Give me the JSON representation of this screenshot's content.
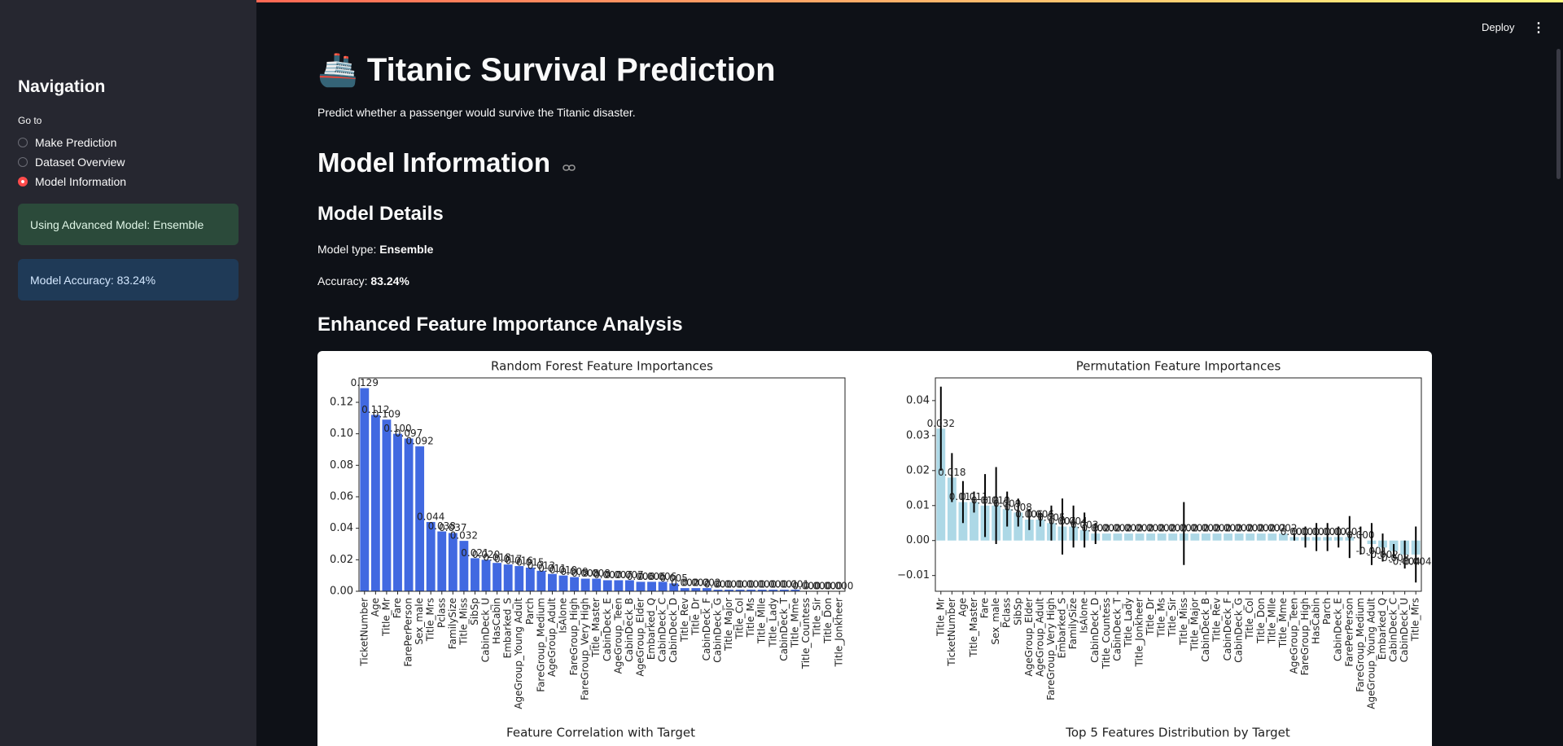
{
  "sidebar": {
    "heading": "Navigation",
    "radio_label": "Go to",
    "options": [
      "Make Prediction",
      "Dataset Overview",
      "Model Information"
    ],
    "selected": 2,
    "success_box": "Using Advanced Model: Ensemble",
    "info_box": "Model Accuracy: 83.24%"
  },
  "toolbar": {
    "deploy": "Deploy"
  },
  "main": {
    "title": "🚢 Titanic Survival Prediction",
    "subtitle": "Predict whether a passenger would survive the Titanic disaster.",
    "section": "Model Information",
    "details_heading": "Model Details",
    "model_type_label": "Model type:",
    "model_type": "Ensemble",
    "accuracy_label": "Accuracy:",
    "accuracy": "83.24%",
    "feature_heading": "Enhanced Feature Importance Analysis",
    "next_chart_titles": [
      "Feature Correlation with Target",
      "Top 5 Features Distribution by Target"
    ]
  },
  "chart_data": [
    {
      "type": "bar",
      "title": "Random Forest Feature Importances",
      "color": "#4169e1",
      "categories": [
        "TicketNumber",
        "Age",
        "Title_Mr",
        "Fare",
        "FarePerPerson",
        "Sex_male",
        "Title_Mrs",
        "Pclass",
        "FamilySize",
        "Title_Miss",
        "SibSp",
        "CabinDeck_U",
        "HasCabin",
        "Embarked_S",
        "AgeGroup_Young Adult",
        "Parch",
        "FareGroup_Medium",
        "AgeGroup_Adult",
        "IsAlone",
        "FareGroup_High",
        "FareGroup_Very High",
        "Title_Master",
        "CabinDeck_E",
        "AgeGroup_Teen",
        "CabinDeck_B",
        "AgeGroup_Elder",
        "Embarked_Q",
        "CabinDeck_C",
        "CabinDeck_D",
        "Title_Rev",
        "Title_Dr",
        "CabinDeck_F",
        "CabinDeck_G",
        "Title_Major",
        "Title_Col",
        "Title_Ms",
        "Title_Mlle",
        "Title_Lady",
        "CabinDeck_T",
        "Title_Mme",
        "Title_Countess",
        "Title_Sir",
        "Title_Don",
        "Title_Jonkheer"
      ],
      "values": [
        0.129,
        0.112,
        0.109,
        0.1,
        0.097,
        0.092,
        0.044,
        0.038,
        0.037,
        0.032,
        0.021,
        0.02,
        0.018,
        0.017,
        0.016,
        0.015,
        0.013,
        0.011,
        0.01,
        0.009,
        0.008,
        0.008,
        0.007,
        0.007,
        0.007,
        0.006,
        0.006,
        0.006,
        0.005,
        0.002,
        0.002,
        0.002,
        0.001,
        0.001,
        0.001,
        0.001,
        0.001,
        0.001,
        0.001,
        0.001,
        0,
        0,
        0,
        0
      ],
      "value_labels": [
        "0.129",
        "0.112",
        "0.109",
        "0.100",
        "0.097",
        "0.092",
        "0.044",
        "0.038",
        "0.037",
        "0.032",
        "0.021",
        "0.020",
        "0.018",
        "0.017",
        "0.016",
        "0.015",
        "0.013",
        "0.011",
        "0.010",
        "0.009",
        "0.008",
        "0.008",
        "0.007",
        "0.007",
        "0.007",
        "0.006",
        "0.006",
        "0.006",
        "0.005",
        "0.002",
        "0.002",
        "0.002",
        "0.001",
        "0.001",
        "0.001",
        "0.001",
        "0.001",
        "0.001",
        "0.001",
        "0.001",
        "0.000",
        "0.000",
        "0.000",
        "0.000"
      ],
      "ylim": [
        0,
        0.1355
      ],
      "yticks": [
        {
          "value": 0,
          "label": "0.00"
        },
        {
          "value": 0.02,
          "label": "0.02"
        },
        {
          "value": 0.04,
          "label": "0.04"
        },
        {
          "value": 0.06,
          "label": "0.06"
        },
        {
          "value": 0.08,
          "label": "0.08"
        },
        {
          "value": 0.1,
          "label": "0.10"
        },
        {
          "value": 0.12,
          "label": "0.12"
        }
      ]
    },
    {
      "type": "bar",
      "title": "Permutation Feature Importances",
      "color": "#add8e6",
      "error_color": "#000000",
      "categories": [
        "Title_Mr",
        "TicketNumber",
        "Age",
        "Title_Master",
        "Fare",
        "Sex_male",
        "Pclass",
        "SibSp",
        "AgeGroup_Elder",
        "AgeGroup_Adult",
        "FareGroup_Very High",
        "Embarked_S",
        "FamilySize",
        "IsAlone",
        "CabinDeck_D",
        "Title_Countess",
        "CabinDeck_T",
        "Title_Lady",
        "Title_Jonkheer",
        "Title_Dr",
        "Title_Ms",
        "Title_Sir",
        "Title_Miss",
        "Title_Major",
        "CabinDeck_B",
        "Title_Rev",
        "CabinDeck_F",
        "CabinDeck_G",
        "Title_Col",
        "Title_Don",
        "Title_Mlle",
        "Title_Mme",
        "AgeGroup_Teen",
        "FareGroup_High",
        "HasCabin",
        "Parch",
        "CabinDeck_E",
        "FarePerPerson",
        "FareGroup_Medium",
        "AgeGroup_Young Adult",
        "Embarked_Q",
        "CabinDeck_C",
        "CabinDeck_U",
        "Title_Mrs"
      ],
      "values": [
        0.032,
        0.018,
        0.011,
        0.011,
        0.01,
        0.01,
        0.009,
        0.008,
        0.006,
        0.006,
        0.005,
        0.004,
        0.004,
        0.003,
        0.002,
        0.002,
        0.002,
        0.002,
        0.002,
        0.002,
        0.002,
        0.002,
        0.002,
        0.002,
        0.002,
        0.002,
        0.002,
        0.002,
        0.002,
        0.002,
        0.002,
        0.002,
        0.001,
        0.001,
        0.001,
        0.001,
        0.001,
        0.001,
        0,
        -0.001,
        -0.002,
        -0.003,
        -0.004,
        -0.004
      ],
      "errors": [
        0.012,
        0.007,
        0.006,
        0.003,
        0.009,
        0.011,
        0.005,
        0.004,
        0.003,
        0.002,
        0.005,
        0.008,
        0.006,
        0.005,
        0.003,
        0,
        0,
        0,
        0,
        0,
        0,
        0,
        0.009,
        0,
        0,
        0,
        0,
        0,
        0,
        0,
        0,
        0,
        0.001,
        0.003,
        0.004,
        0.004,
        0.003,
        0.006,
        0.004,
        0.006,
        0.004,
        0.002,
        0.004,
        0.008
      ],
      "value_labels": [
        "0.032",
        "0.018",
        "0.011",
        "0.011",
        "0.010",
        "0.010",
        "0.009",
        "0.008",
        "0.006",
        "0.006",
        "0.005",
        "0.004",
        "0.004",
        "0.003",
        "0.002",
        "0.002",
        "0.002",
        "0.002",
        "0.002",
        "0.002",
        "0.002",
        "0.002",
        "0.002",
        "0.002",
        "0.002",
        "0.002",
        "0.002",
        "0.002",
        "0.002",
        "0.002",
        "0.002",
        "0.002",
        "0.001",
        "0.001",
        "0.001",
        "0.001",
        "0.001",
        "0.001",
        "0.000",
        "-0.001",
        "-0.002",
        "-0.003",
        "-0.004",
        "-0.004"
      ],
      "ylim": [
        -0.0145,
        0.0465
      ],
      "yticks": [
        {
          "value": -0.01,
          "label": "−0.01"
        },
        {
          "value": 0,
          "label": "0.00"
        },
        {
          "value": 0.01,
          "label": "0.01"
        },
        {
          "value": 0.02,
          "label": "0.02"
        },
        {
          "value": 0.03,
          "label": "0.03"
        },
        {
          "value": 0.04,
          "label": "0.04"
        }
      ]
    }
  ]
}
